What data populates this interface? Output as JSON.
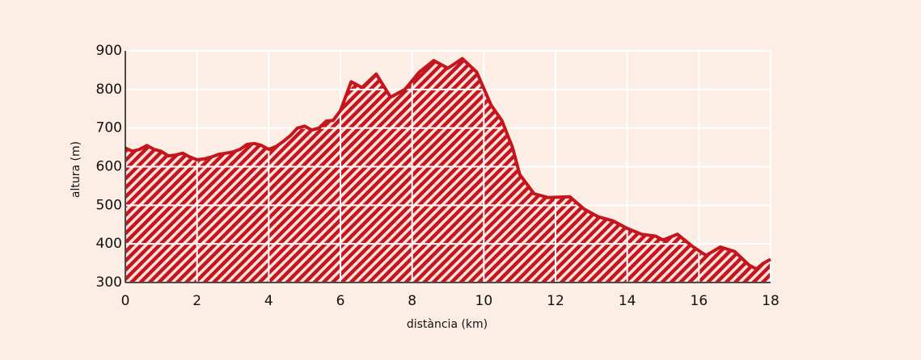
{
  "chart_data": {
    "type": "area",
    "x_label": "distància (km)",
    "y_label": "altura (m)",
    "x": [
      0,
      0.2,
      0.4,
      0.6,
      0.8,
      1.0,
      1.2,
      1.4,
      1.6,
      1.8,
      2.0,
      2.2,
      2.4,
      2.6,
      2.8,
      3.0,
      3.2,
      3.4,
      3.6,
      3.8,
      4.0,
      4.2,
      4.4,
      4.6,
      4.8,
      5.0,
      5.2,
      5.4,
      5.6,
      5.8,
      6.0,
      6.3,
      6.6,
      7.0,
      7.4,
      7.8,
      8.2,
      8.6,
      9.0,
      9.4,
      9.8,
      10.2,
      10.5,
      10.8,
      11.0,
      11.4,
      11.8,
      12.4,
      12.8,
      13.2,
      13.6,
      14.0,
      14.4,
      14.8,
      15.0,
      15.4,
      15.8,
      16.2,
      16.6,
      17.0,
      17.4,
      17.6,
      17.8,
      18.0
    ],
    "values": [
      648,
      640,
      645,
      655,
      645,
      640,
      628,
      630,
      635,
      625,
      618,
      620,
      625,
      632,
      635,
      638,
      645,
      658,
      660,
      655,
      645,
      652,
      665,
      680,
      700,
      705,
      695,
      700,
      718,
      720,
      745,
      820,
      805,
      840,
      780,
      800,
      845,
      875,
      855,
      880,
      845,
      760,
      720,
      650,
      580,
      530,
      520,
      522,
      490,
      470,
      460,
      440,
      425,
      420,
      410,
      425,
      395,
      370,
      392,
      380,
      345,
      335,
      350,
      360
    ],
    "color": "#c4161c",
    "xlim": [
      0,
      18
    ],
    "xticks": [
      0,
      2,
      4,
      6,
      8,
      10,
      12,
      14,
      16,
      18
    ],
    "ylim": [
      300,
      900
    ],
    "yticks": [
      300,
      400,
      500,
      600,
      700,
      800,
      900
    ],
    "grid": true
  }
}
